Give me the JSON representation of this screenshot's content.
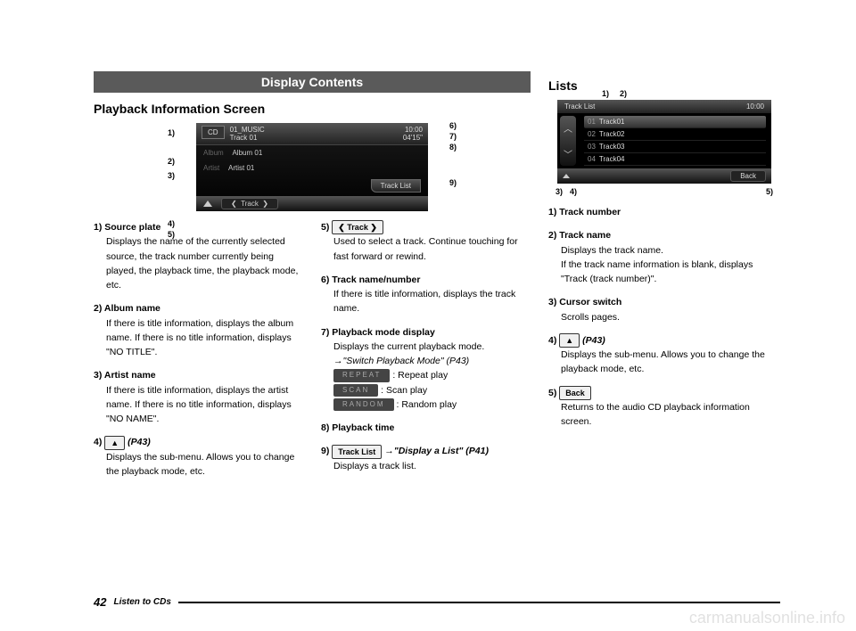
{
  "header": {
    "title": "Display Contents"
  },
  "left": {
    "section_title": "Playback Information Screen",
    "screen": {
      "source_badge": "CD",
      "track_title": "01_MUSIC",
      "track_sub": "Track 01",
      "elapsed": "04'15\"",
      "clock": "10:00",
      "album_label": "Album",
      "album_value": "Album 01",
      "artist_label": "Artist",
      "artist_value": "Artist 01",
      "tracklist_btn": "Track List",
      "nav_label": "Track"
    },
    "callouts_left": [
      "1)",
      "2)",
      "3)",
      "4)",
      "5)"
    ],
    "callouts_right": [
      "6)",
      "7)",
      "8)",
      "9)"
    ],
    "items_a": [
      {
        "n": "1)",
        "title": "Source plate",
        "desc": "Displays the name of the currently selected source, the track number currently being played, the playback time, the playback mode, etc."
      },
      {
        "n": "2)",
        "title": "Album name",
        "desc": " If there is title information, displays the album name. If there is no title information, displays \"NO TITLE\"."
      },
      {
        "n": "3)",
        "title": "Artist name",
        "desc": "If there is title information, displays the artist name. If there is no title information, displays \"NO NAME\"."
      },
      {
        "n": "4)",
        "btn": "▲",
        "ref": "(P43)",
        "desc": "Displays the sub-menu. Allows you to change the playback mode, etc."
      }
    ],
    "items_b": [
      {
        "n": "5)",
        "btn": "❮ Track ❯",
        "desc": "Used to select a track. Continue touching for fast forward or rewind."
      },
      {
        "n": "6)",
        "title": "Track name/number",
        "desc": "If there is title information, displays the track name."
      },
      {
        "n": "7)",
        "title": "Playback mode display",
        "desc": "Displays the current playback mode.",
        "ref": "→\"Switch Playback Mode\" (P43)",
        "modes": [
          {
            "btn": "REPEAT",
            "txt": ": Repeat play"
          },
          {
            "btn": "SCAN",
            "txt": ": Scan play"
          },
          {
            "btn": "RANDOM",
            "txt": ": Random play"
          }
        ]
      },
      {
        "n": "8)",
        "title": "Playback time"
      },
      {
        "n": "9)",
        "btn": "Track List",
        "desc": "Displays a track list.",
        "ref": "→\"Display a List\" (P41)"
      }
    ]
  },
  "right": {
    "section_title": "Lists",
    "screen": {
      "title": "Track List",
      "clock": "10:00",
      "rows": [
        {
          "num": "01",
          "name": "Track01",
          "active": true
        },
        {
          "num": "02",
          "name": "Track02"
        },
        {
          "num": "03",
          "name": "Track03"
        },
        {
          "num": "04",
          "name": "Track04"
        }
      ],
      "back": "Back"
    },
    "callouts_top": [
      "1)",
      "2)"
    ],
    "callouts_bottom": [
      "3)",
      "4)",
      "5)"
    ],
    "items": [
      {
        "n": "1)",
        "title": "Track number"
      },
      {
        "n": "2)",
        "title": "Track name",
        "desc": "Displays the track name.\nIf the track name information is blank, displays \"Track (track number)\"."
      },
      {
        "n": "3)",
        "title": "Cursor switch",
        "desc": "Scrolls pages."
      },
      {
        "n": "4)",
        "btn": "▲",
        "ref": "(P43)",
        "desc": "Displays the sub-menu. Allows you to change the playback mode, etc."
      },
      {
        "n": "5)",
        "btn": "Back",
        "desc": "Returns to the audio CD playback information screen."
      }
    ]
  },
  "footer": {
    "page": "42",
    "section": "Listen to CDs"
  },
  "watermark": "carmanualsonline.info"
}
